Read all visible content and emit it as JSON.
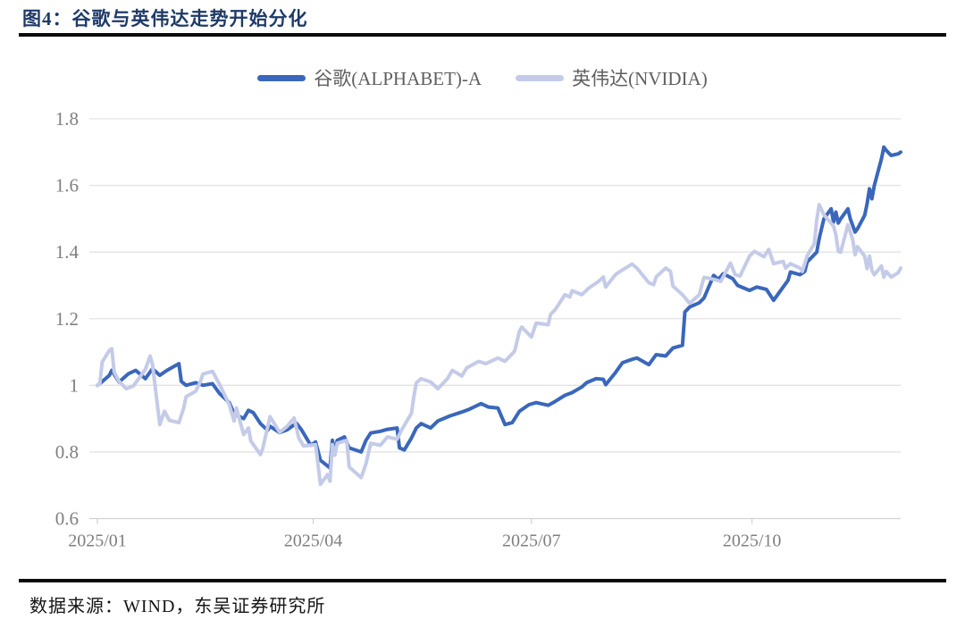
{
  "title": "图4：谷歌与英伟达走势开始分化",
  "source": "数据来源：WIND，东吴证券研究所",
  "colors": {
    "title": "#1e3a68",
    "rule": "#0a0a0a",
    "gridline": "#e3e3e3",
    "axis": "#d2d2d2",
    "tick_label": "#7f7f7f"
  },
  "chart_data": {
    "type": "line",
    "title": "图4：谷歌与英伟达走势开始分化",
    "xlabel": "",
    "ylabel": "",
    "ylim": [
      0.6,
      1.8
    ],
    "y_tick_labels": [
      "0.6",
      "0.8",
      "1",
      "1.2",
      "1.4",
      "1.6",
      "1.8"
    ],
    "x_tick_labels": [
      "2025/01",
      "2025/04",
      "2025/07",
      "2025/10"
    ],
    "x_start": "01-01",
    "x_end": "12-02",
    "grid": "horizontal",
    "legend_position": "top-center",
    "series": [
      {
        "name": "谷歌(ALPHABET)-A",
        "color": "#3a67bb",
        "data_name": "series-googl-line",
        "points": [
          [
            "01-01",
            1.0
          ],
          [
            "01-02",
            1.005
          ],
          [
            "01-06",
            1.03
          ],
          [
            "01-07",
            1.045
          ],
          [
            "01-10",
            1.01
          ],
          [
            "01-14",
            1.035
          ],
          [
            "01-17",
            1.045
          ],
          [
            "01-21",
            1.02
          ],
          [
            "01-24",
            1.05
          ],
          [
            "01-27",
            1.03
          ],
          [
            "01-30",
            1.045
          ],
          [
            "02-04",
            1.065
          ],
          [
            "02-05",
            1.012
          ],
          [
            "02-07",
            1.0
          ],
          [
            "02-11",
            1.008
          ],
          [
            "02-14",
            1.0
          ],
          [
            "02-18",
            1.005
          ],
          [
            "02-21",
            0.975
          ],
          [
            "02-25",
            0.948
          ],
          [
            "02-27",
            0.915
          ],
          [
            "03-03",
            0.9
          ],
          [
            "03-05",
            0.925
          ],
          [
            "03-07",
            0.918
          ],
          [
            "03-10",
            0.885
          ],
          [
            "03-13",
            0.865
          ],
          [
            "03-14",
            0.877
          ],
          [
            "03-18",
            0.858
          ],
          [
            "03-21",
            0.866
          ],
          [
            "03-25",
            0.886
          ],
          [
            "03-27",
            0.868
          ],
          [
            "03-31",
            0.82
          ],
          [
            "04-02",
            0.83
          ],
          [
            "04-04",
            0.775
          ],
          [
            "04-08",
            0.752
          ],
          [
            "04-09",
            0.835
          ],
          [
            "04-10",
            0.798
          ],
          [
            "04-11",
            0.835
          ],
          [
            "04-14",
            0.845
          ],
          [
            "04-16",
            0.812
          ],
          [
            "04-21",
            0.8
          ],
          [
            "04-23",
            0.835
          ],
          [
            "04-25",
            0.857
          ],
          [
            "04-29",
            0.862
          ],
          [
            "05-02",
            0.868
          ],
          [
            "05-06",
            0.872
          ],
          [
            "05-07",
            0.812
          ],
          [
            "05-09",
            0.806
          ],
          [
            "05-12",
            0.842
          ],
          [
            "05-14",
            0.872
          ],
          [
            "05-16",
            0.885
          ],
          [
            "05-20",
            0.872
          ],
          [
            "05-23",
            0.893
          ],
          [
            "05-28",
            0.908
          ],
          [
            "06-02",
            0.92
          ],
          [
            "06-05",
            0.928
          ],
          [
            "06-10",
            0.945
          ],
          [
            "06-13",
            0.935
          ],
          [
            "06-17",
            0.932
          ],
          [
            "06-20",
            0.882
          ],
          [
            "06-23",
            0.888
          ],
          [
            "06-26",
            0.922
          ],
          [
            "06-30",
            0.942
          ],
          [
            "07-03",
            0.948
          ],
          [
            "07-08",
            0.94
          ],
          [
            "07-11",
            0.952
          ],
          [
            "07-15",
            0.97
          ],
          [
            "07-18",
            0.978
          ],
          [
            "07-22",
            0.995
          ],
          [
            "07-24",
            1.008
          ],
          [
            "07-28",
            1.02
          ],
          [
            "07-31",
            1.018
          ],
          [
            "08-01",
            1.002
          ],
          [
            "08-05",
            1.038
          ],
          [
            "08-08",
            1.068
          ],
          [
            "08-12",
            1.078
          ],
          [
            "08-14",
            1.082
          ],
          [
            "08-19",
            1.062
          ],
          [
            "08-22",
            1.092
          ],
          [
            "08-26",
            1.088
          ],
          [
            "08-29",
            1.112
          ],
          [
            "09-02",
            1.12
          ],
          [
            "09-03",
            1.22
          ],
          [
            "09-05",
            1.235
          ],
          [
            "09-09",
            1.248
          ],
          [
            "09-11",
            1.262
          ],
          [
            "09-15",
            1.33
          ],
          [
            "09-17",
            1.318
          ],
          [
            "09-19",
            1.335
          ],
          [
            "09-23",
            1.32
          ],
          [
            "09-25",
            1.3
          ],
          [
            "09-30",
            1.285
          ],
          [
            "10-03",
            1.295
          ],
          [
            "10-07",
            1.288
          ],
          [
            "10-10",
            1.255
          ],
          [
            "10-14",
            1.295
          ],
          [
            "10-16",
            1.315
          ],
          [
            "10-17",
            1.34
          ],
          [
            "10-21",
            1.332
          ],
          [
            "10-23",
            1.342
          ],
          [
            "10-24",
            1.37
          ],
          [
            "10-28",
            1.4
          ],
          [
            "10-29",
            1.44
          ],
          [
            "10-30",
            1.47
          ],
          [
            "10-31",
            1.5
          ],
          [
            "11-03",
            1.53
          ],
          [
            "11-04",
            1.49
          ],
          [
            "11-05",
            1.52
          ],
          [
            "11-06",
            1.487
          ],
          [
            "11-07",
            1.5
          ],
          [
            "11-10",
            1.53
          ],
          [
            "11-11",
            1.5
          ],
          [
            "11-12",
            1.48
          ],
          [
            "11-13",
            1.46
          ],
          [
            "11-14",
            1.47
          ],
          [
            "11-17",
            1.51
          ],
          [
            "11-18",
            1.545
          ],
          [
            "11-19",
            1.59
          ],
          [
            "11-20",
            1.56
          ],
          [
            "11-21",
            1.6
          ],
          [
            "11-24",
            1.68
          ],
          [
            "11-25",
            1.715
          ],
          [
            "11-26",
            1.705
          ],
          [
            "11-28",
            1.69
          ],
          [
            "12-01",
            1.695
          ],
          [
            "12-02",
            1.7
          ]
        ]
      },
      {
        "name": "英伟达(NVIDIA)",
        "color": "#c4cbe8",
        "data_name": "series-nvda-line",
        "points": [
          [
            "01-01",
            1.0
          ],
          [
            "01-02",
            1.005
          ],
          [
            "01-03",
            1.07
          ],
          [
            "01-06",
            1.105
          ],
          [
            "01-07",
            1.11
          ],
          [
            "01-08",
            1.04
          ],
          [
            "01-10",
            1.012
          ],
          [
            "01-13",
            0.99
          ],
          [
            "01-16",
            0.998
          ],
          [
            "01-21",
            1.048
          ],
          [
            "01-23",
            1.088
          ],
          [
            "01-24",
            1.062
          ],
          [
            "01-27",
            0.882
          ],
          [
            "01-29",
            0.922
          ],
          [
            "01-31",
            0.895
          ],
          [
            "02-04",
            0.888
          ],
          [
            "02-06",
            0.932
          ],
          [
            "02-07",
            0.966
          ],
          [
            "02-11",
            0.982
          ],
          [
            "02-13",
            1.012
          ],
          [
            "02-14",
            1.034
          ],
          [
            "02-18",
            1.042
          ],
          [
            "02-21",
            1.002
          ],
          [
            "02-25",
            0.942
          ],
          [
            "02-27",
            0.893
          ],
          [
            "02-28",
            0.932
          ],
          [
            "03-03",
            0.852
          ],
          [
            "03-05",
            0.872
          ],
          [
            "03-06",
            0.833
          ],
          [
            "03-10",
            0.792
          ],
          [
            "03-11",
            0.812
          ],
          [
            "03-14",
            0.906
          ],
          [
            "03-18",
            0.859
          ],
          [
            "03-21",
            0.876
          ],
          [
            "03-24",
            0.902
          ],
          [
            "03-26",
            0.842
          ],
          [
            "03-28",
            0.818
          ],
          [
            "04-02",
            0.822
          ],
          [
            "04-04",
            0.703
          ],
          [
            "04-07",
            0.732
          ],
          [
            "04-08",
            0.712
          ],
          [
            "04-09",
            0.822
          ],
          [
            "04-10",
            0.79
          ],
          [
            "04-11",
            0.826
          ],
          [
            "04-15",
            0.835
          ],
          [
            "04-16",
            0.755
          ],
          [
            "04-21",
            0.723
          ],
          [
            "04-23",
            0.765
          ],
          [
            "04-25",
            0.826
          ],
          [
            "04-29",
            0.82
          ],
          [
            "05-02",
            0.845
          ],
          [
            "05-06",
            0.838
          ],
          [
            "05-08",
            0.868
          ],
          [
            "05-12",
            0.916
          ],
          [
            "05-13",
            0.967
          ],
          [
            "05-14",
            1.007
          ],
          [
            "05-16",
            1.02
          ],
          [
            "05-20",
            1.01
          ],
          [
            "05-23",
            0.99
          ],
          [
            "05-27",
            1.02
          ],
          [
            "05-29",
            1.045
          ],
          [
            "06-02",
            1.028
          ],
          [
            "06-04",
            1.052
          ],
          [
            "06-09",
            1.072
          ],
          [
            "06-12",
            1.065
          ],
          [
            "06-17",
            1.082
          ],
          [
            "06-20",
            1.072
          ],
          [
            "06-24",
            1.102
          ],
          [
            "06-26",
            1.162
          ],
          [
            "06-27",
            1.175
          ],
          [
            "07-01",
            1.145
          ],
          [
            "07-03",
            1.187
          ],
          [
            "07-08",
            1.182
          ],
          [
            "07-09",
            1.213
          ],
          [
            "07-11",
            1.228
          ],
          [
            "07-15",
            1.272
          ],
          [
            "07-17",
            1.265
          ],
          [
            "07-18",
            1.284
          ],
          [
            "07-22",
            1.272
          ],
          [
            "07-25",
            1.292
          ],
          [
            "07-29",
            1.312
          ],
          [
            "07-31",
            1.325
          ],
          [
            "08-01",
            1.295
          ],
          [
            "08-05",
            1.332
          ],
          [
            "08-07",
            1.342
          ],
          [
            "08-12",
            1.364
          ],
          [
            "08-14",
            1.352
          ],
          [
            "08-19",
            1.308
          ],
          [
            "08-21",
            1.302
          ],
          [
            "08-22",
            1.325
          ],
          [
            "08-26",
            1.352
          ],
          [
            "08-28",
            1.342
          ],
          [
            "08-29",
            1.298
          ],
          [
            "09-02",
            1.272
          ],
          [
            "09-05",
            1.246
          ],
          [
            "09-09",
            1.272
          ],
          [
            "09-11",
            1.324
          ],
          [
            "09-15",
            1.318
          ],
          [
            "09-18",
            1.312
          ],
          [
            "09-22",
            1.367
          ],
          [
            "09-24",
            1.332
          ],
          [
            "09-26",
            1.328
          ],
          [
            "09-30",
            1.388
          ],
          [
            "10-02",
            1.402
          ],
          [
            "10-06",
            1.386
          ],
          [
            "10-08",
            1.408
          ],
          [
            "10-10",
            1.365
          ],
          [
            "10-14",
            1.372
          ],
          [
            "10-15",
            1.352
          ],
          [
            "10-17",
            1.365
          ],
          [
            "10-21",
            1.352
          ],
          [
            "10-22",
            1.342
          ],
          [
            "10-24",
            1.388
          ],
          [
            "10-27",
            1.426
          ],
          [
            "10-28",
            1.497
          ],
          [
            "10-29",
            1.542
          ],
          [
            "10-31",
            1.512
          ],
          [
            "11-04",
            1.478
          ],
          [
            "11-05",
            1.452
          ],
          [
            "11-06",
            1.402
          ],
          [
            "11-07",
            1.4
          ],
          [
            "11-10",
            1.482
          ],
          [
            "11-12",
            1.438
          ],
          [
            "11-13",
            1.392
          ],
          [
            "11-14",
            1.416
          ],
          [
            "11-17",
            1.388
          ],
          [
            "11-18",
            1.35
          ],
          [
            "11-19",
            1.388
          ],
          [
            "11-20",
            1.345
          ],
          [
            "11-21",
            1.332
          ],
          [
            "11-24",
            1.358
          ],
          [
            "11-25",
            1.325
          ],
          [
            "11-26",
            1.342
          ],
          [
            "11-28",
            1.325
          ],
          [
            "12-01",
            1.338
          ],
          [
            "12-02",
            1.352
          ]
        ]
      }
    ]
  }
}
